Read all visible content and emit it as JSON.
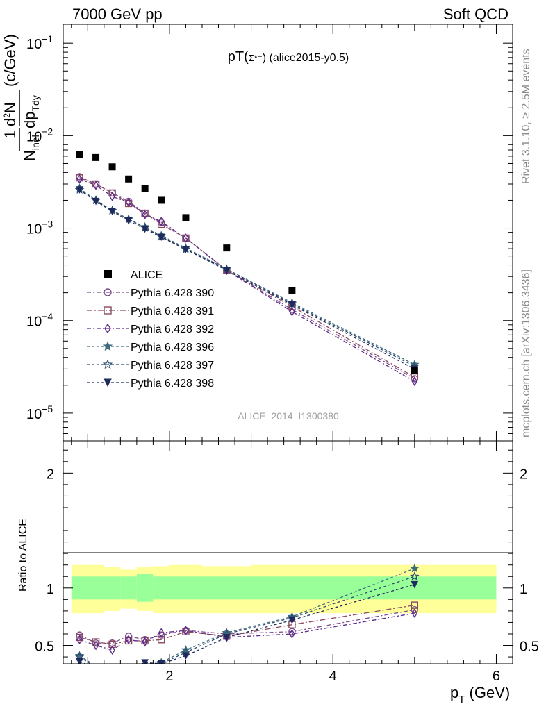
{
  "header": {
    "left": "7000 GeV pp",
    "right": "Soft QCD"
  },
  "side": {
    "rivet": "Rivet 3.1.10, ≥ 2.5M events",
    "mcplots": "mcplots.cern.ch [arXiv:1306.3436]"
  },
  "chart_data": [
    {
      "type": "scatter",
      "panel": "main",
      "title": "pT(Σ*⁺) (alice2015-y0.5)",
      "title_main": "pT(",
      "title_particle": "Σ*⁺",
      "title_tail": ") (alice2015-y0.5)",
      "watermark": "ALICE_2014_I1300380",
      "xlabel": "p_T (GeV)",
      "ylabel": "1/N_inel d²N/dp_T dy (c/GeV)",
      "yscale": "log",
      "xlim": [
        0.7,
        6.2
      ],
      "ylim": [
        5e-06,
        0.16
      ],
      "yticks": [
        {
          "value": 0.1,
          "base": "10",
          "exp": "−1"
        },
        {
          "value": 0.01,
          "base": "10",
          "exp": "−2"
        },
        {
          "value": 0.001,
          "base": "10",
          "exp": "−3"
        },
        {
          "value": 0.0001,
          "base": "10",
          "exp": "−4"
        },
        {
          "value": 1e-05,
          "base": "10",
          "exp": "−5"
        }
      ],
      "legend_position": "middle-left",
      "data": {
        "name": "ALICE",
        "color": "#000000",
        "x": [
          0.9,
          1.1,
          1.3,
          1.5,
          1.7,
          1.9,
          2.2,
          2.7,
          3.5,
          5.0
        ],
        "y": [
          0.0062,
          0.0058,
          0.0046,
          0.0034,
          0.0027,
          0.002,
          0.0013,
          0.00061,
          0.00021,
          2.9e-05
        ]
      },
      "series": [
        {
          "name": "Pythia 6.428 390",
          "color": "#7b4a8b",
          "marker": "circle",
          "dash": "6,3,2,3",
          "x": [
            0.9,
            1.1,
            1.3,
            1.5,
            1.7,
            1.9,
            2.2,
            2.7,
            3.5,
            5.0
          ],
          "y": [
            0.0036,
            0.003,
            0.0024,
            0.00195,
            0.00145,
            0.00115,
            0.00078,
            0.00035,
            0.000132,
            2.35e-05
          ]
        },
        {
          "name": "Pythia 6.428 391",
          "color": "#8a4a5e",
          "marker": "square",
          "dash": "8,3,2,3",
          "x": [
            0.9,
            1.1,
            1.3,
            1.5,
            1.7,
            1.9,
            2.2,
            2.7,
            3.5,
            5.0
          ],
          "y": [
            0.0035,
            0.003,
            0.0024,
            0.00185,
            0.00145,
            0.0011,
            0.00078,
            0.00035,
            0.000142,
            2.45e-05
          ]
        },
        {
          "name": "Pythia 6.428 392",
          "color": "#5c2a8a",
          "marker": "diamond",
          "dash": "6,3,2,3",
          "x": [
            0.9,
            1.1,
            1.3,
            1.5,
            1.7,
            1.9,
            2.2,
            2.7,
            3.5,
            5.0
          ],
          "y": [
            0.0034,
            0.0029,
            0.0022,
            0.0019,
            0.0014,
            0.00118,
            0.00078,
            0.00035,
            0.000125,
            2.2e-05
          ]
        },
        {
          "name": "Pythia 6.428 396",
          "color": "#3e6e7e",
          "marker": "star",
          "dash": "4,3",
          "x": [
            0.9,
            1.1,
            1.3,
            1.5,
            1.7,
            1.9,
            2.2,
            2.7,
            3.5,
            5.0
          ],
          "y": [
            0.0027,
            0.002,
            0.00155,
            0.00125,
            0.00103,
            0.00083,
            0.00061,
            0.00036,
            0.000156,
            3.35e-05
          ]
        },
        {
          "name": "Pythia 6.428 397",
          "color": "#2d4d6e",
          "marker": "star-open",
          "dash": "4,3",
          "x": [
            0.9,
            1.1,
            1.3,
            1.5,
            1.7,
            1.9,
            2.2,
            2.7,
            3.5,
            5.0
          ],
          "y": [
            0.0026,
            0.002,
            0.00155,
            0.00125,
            0.00101,
            0.00081,
            0.00059,
            0.00036,
            0.000152,
            3.2e-05
          ]
        },
        {
          "name": "Pythia 6.428 398",
          "color": "#1e2a5e",
          "marker": "triangle-down",
          "dash": "4,3",
          "x": [
            0.9,
            1.1,
            1.3,
            1.5,
            1.7,
            1.9,
            2.2,
            2.7,
            3.5,
            5.0
          ],
          "y": [
            0.0026,
            0.00195,
            0.00152,
            0.0012,
            0.00098,
            0.0008,
            0.00059,
            0.00035,
            0.000148,
            3e-05
          ]
        }
      ]
    },
    {
      "type": "line",
      "panel": "ratio",
      "ylabel": "Ratio to ALICE",
      "xlabel": "p_T (GeV)",
      "xlim": [
        0.7,
        6.2
      ],
      "ylim": [
        0.34,
        2.28
      ],
      "xticks": [
        2,
        4,
        6
      ],
      "yticks": [
        0.5,
        1,
        2
      ],
      "band": {
        "x_edges": [
          0.8,
          1.0,
          1.2,
          1.4,
          1.6,
          1.8,
          2.0,
          2.4,
          3.0,
          4.0,
          6.0
        ],
        "stat_lo": [
          0.9,
          0.9,
          0.9,
          0.9,
          0.88,
          0.9,
          0.9,
          0.9,
          0.9,
          0.9
        ],
        "stat_hi": [
          1.1,
          1.1,
          1.1,
          1.1,
          1.12,
          1.1,
          1.1,
          1.1,
          1.1,
          1.1
        ],
        "syst_lo": [
          0.78,
          0.78,
          0.8,
          0.82,
          0.8,
          0.78,
          0.78,
          0.78,
          0.78,
          0.78
        ],
        "syst_hi": [
          1.2,
          1.2,
          1.18,
          1.16,
          1.18,
          1.19,
          1.2,
          1.19,
          1.2,
          1.2
        ],
        "stat_color": "#99ff99",
        "syst_color": "#ffff99"
      },
      "series": [
        {
          "name": "Pythia 6.428 390",
          "x": [
            0.9,
            1.1,
            1.3,
            1.5,
            1.7,
            1.9,
            2.2,
            2.7,
            3.5,
            5.0
          ],
          "y": [
            0.59,
            0.52,
            0.52,
            0.58,
            0.55,
            0.59,
            0.63,
            0.6,
            0.62,
            0.81
          ]
        },
        {
          "name": "Pythia 6.428 391",
          "x": [
            0.9,
            1.1,
            1.3,
            1.5,
            1.7,
            1.9,
            2.2,
            2.7,
            3.5,
            5.0
          ],
          "y": [
            0.57,
            0.53,
            0.51,
            0.54,
            0.54,
            0.55,
            0.62,
            0.58,
            0.68,
            0.85
          ]
        },
        {
          "name": "Pythia 6.428 392",
          "x": [
            0.9,
            1.1,
            1.3,
            1.5,
            1.7,
            1.9,
            2.2,
            2.7,
            3.5,
            5.0
          ],
          "y": [
            0.55,
            0.5,
            0.46,
            0.55,
            0.53,
            0.61,
            0.63,
            0.57,
            0.6,
            0.78
          ]
        },
        {
          "name": "Pythia 6.428 396",
          "x": [
            0.9,
            1.1,
            1.3,
            1.5,
            1.7,
            1.9,
            2.2,
            2.7,
            3.5,
            5.0
          ],
          "y": [
            0.41,
            0.32,
            0.31,
            0.31,
            0.3,
            0.35,
            0.46,
            0.61,
            0.75,
            1.17
          ]
        },
        {
          "name": "Pythia 6.428 397",
          "x": [
            0.9,
            1.1,
            1.3,
            1.5,
            1.7,
            1.9,
            2.2,
            2.7,
            3.5,
            5.0
          ],
          "y": [
            0.4,
            0.31,
            0.3,
            0.3,
            0.3,
            0.34,
            0.44,
            0.6,
            0.74,
            1.1
          ]
        },
        {
          "name": "Pythia 6.428 398",
          "x": [
            0.9,
            1.1,
            1.3,
            1.5,
            1.7,
            1.9,
            2.2,
            2.7,
            3.5,
            5.0
          ],
          "y": [
            0.36,
            0.3,
            0.29,
            0.3,
            0.35,
            0.34,
            0.41,
            0.57,
            0.72,
            1.03
          ]
        }
      ]
    }
  ]
}
